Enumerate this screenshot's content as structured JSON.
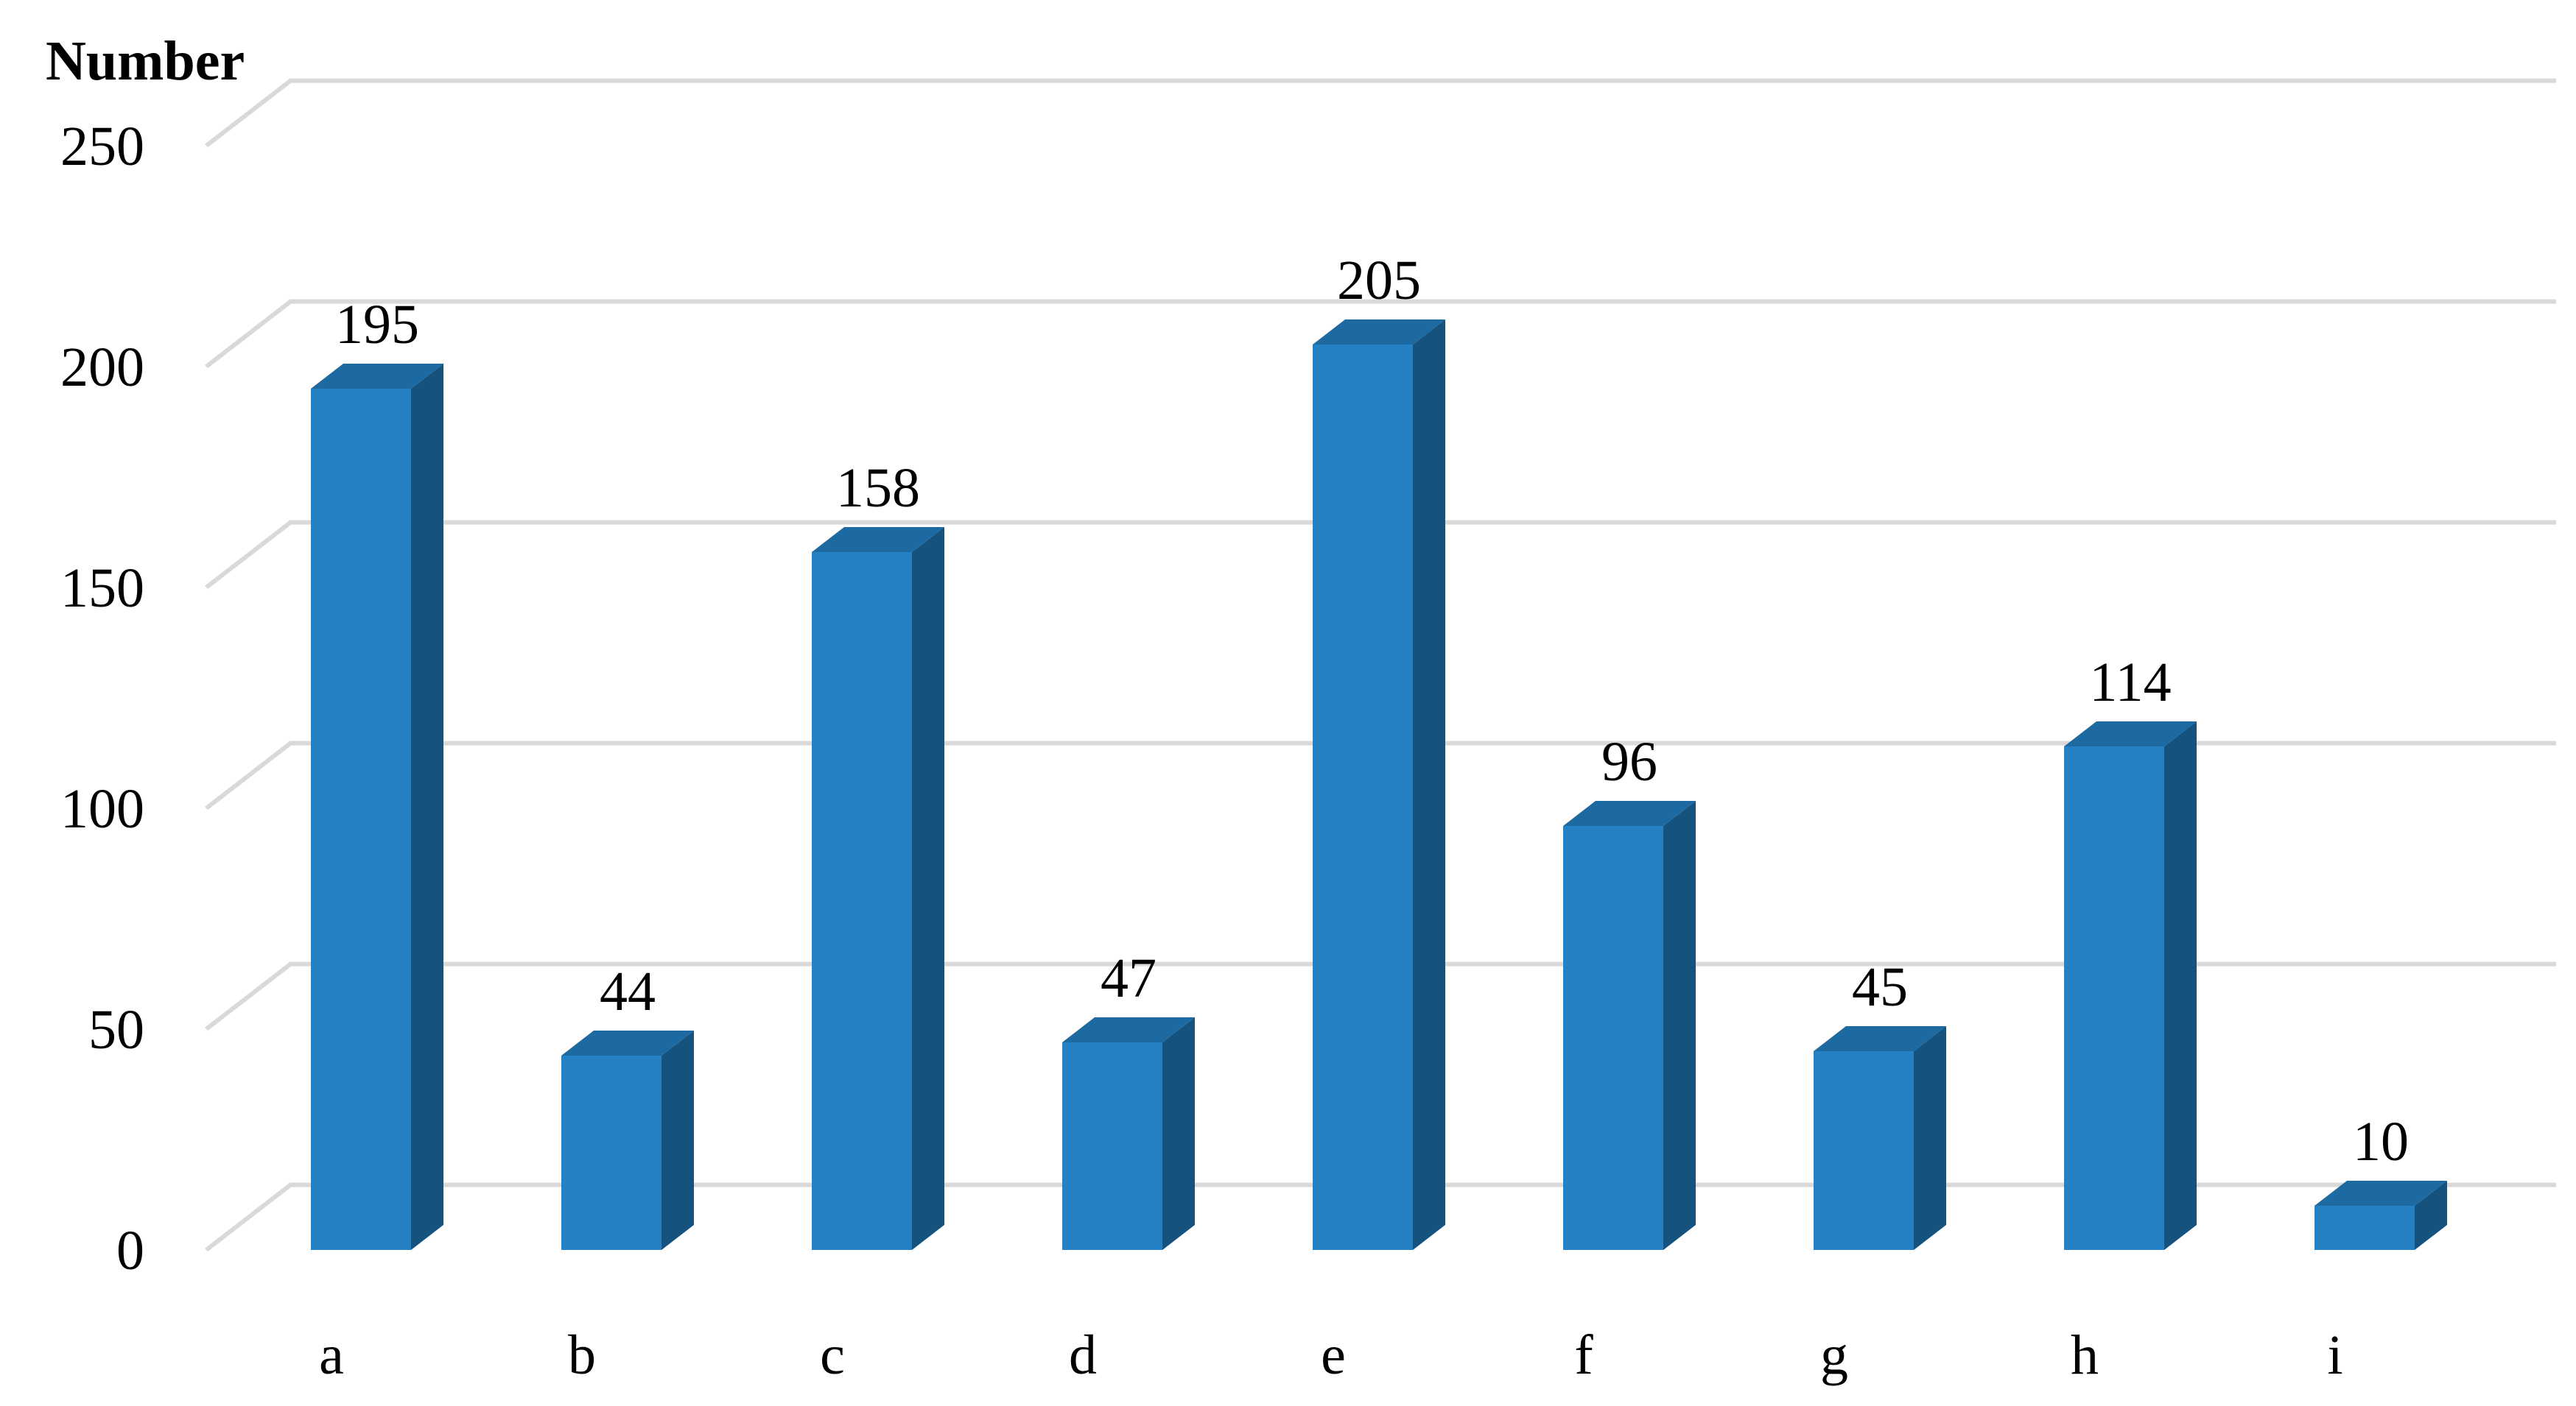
{
  "chart_data": {
    "type": "bar",
    "title": "",
    "xlabel": "",
    "ylabel": "Number",
    "categories": [
      "a",
      "b",
      "c",
      "d",
      "e",
      "f",
      "g",
      "h",
      "i"
    ],
    "values": [
      195,
      44,
      158,
      47,
      205,
      96,
      45,
      114,
      10
    ],
    "data_labels": [
      "195",
      "44",
      "158",
      "47",
      "205",
      "96",
      "45",
      "114",
      "10"
    ],
    "ylim": [
      0,
      250
    ],
    "yticks": [
      0,
      50,
      100,
      150,
      200,
      250
    ],
    "ytick_labels": [
      "0",
      "50",
      "100",
      "150",
      "200",
      "250"
    ],
    "grid": true,
    "legend": "none",
    "style": "3d-column",
    "colors": {
      "bar_front": "#2581c4",
      "bar_side": "#15527e",
      "bar_top": "#1d6aa3",
      "grid": "#d9d9d9"
    }
  }
}
